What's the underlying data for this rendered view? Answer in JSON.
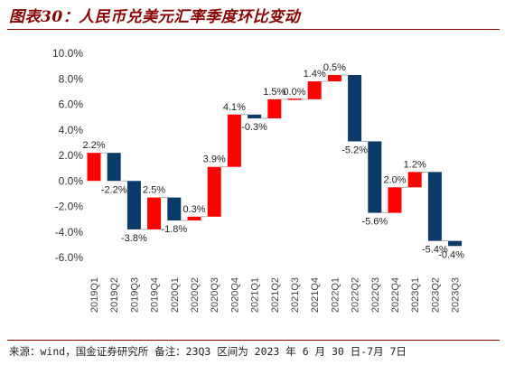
{
  "header": {
    "title": "图表30：人民币兑美元汇率季度环比变动"
  },
  "footer": {
    "source": "来源：wind，国金证券研究所 备注：23Q3 区间为 2023 年 6 月 30 日-7月 7日"
  },
  "chart_data": {
    "type": "bar",
    "subtype": "waterfall",
    "categories": [
      "2019Q1",
      "2019Q2",
      "2019Q3",
      "2019Q4",
      "2020Q1",
      "2020Q2",
      "2020Q3",
      "2020Q4",
      "2021Q1",
      "2021Q2",
      "2021Q3",
      "2021Q4",
      "2022Q1",
      "2022Q2",
      "2022Q3",
      "2022Q4",
      "2023Q1",
      "2023Q2",
      "2023Q3"
    ],
    "values": [
      2.2,
      -2.2,
      -3.8,
      2.5,
      -1.8,
      0.3,
      3.9,
      4.1,
      -0.3,
      1.5,
      0.0,
      1.4,
      0.5,
      -5.2,
      -5.6,
      2.0,
      1.2,
      -5.4,
      -0.4
    ],
    "labels": [
      "2.2%",
      "-2.2%",
      "-3.8%",
      "2.5%",
      "-1.8%",
      "0.3%",
      "3.9%",
      "4.1%",
      "-0.3%",
      "1.5%",
      "0.0%",
      "1.4%",
      "0.5%",
      "-5.2%",
      "-5.6%",
      "2.0%",
      "1.2%",
      "-5.4%",
      "-0.4%"
    ],
    "yticks": [
      "10.0%",
      "8.0%",
      "6.0%",
      "4.0%",
      "2.0%",
      "0.0%",
      "-2.0%",
      "-4.0%",
      "-6.0%"
    ],
    "ylim": [
      -6,
      10
    ],
    "colors": {
      "positive": "#FF0000",
      "negative": "#0B3B6A"
    },
    "grid": false,
    "legend": "none"
  }
}
